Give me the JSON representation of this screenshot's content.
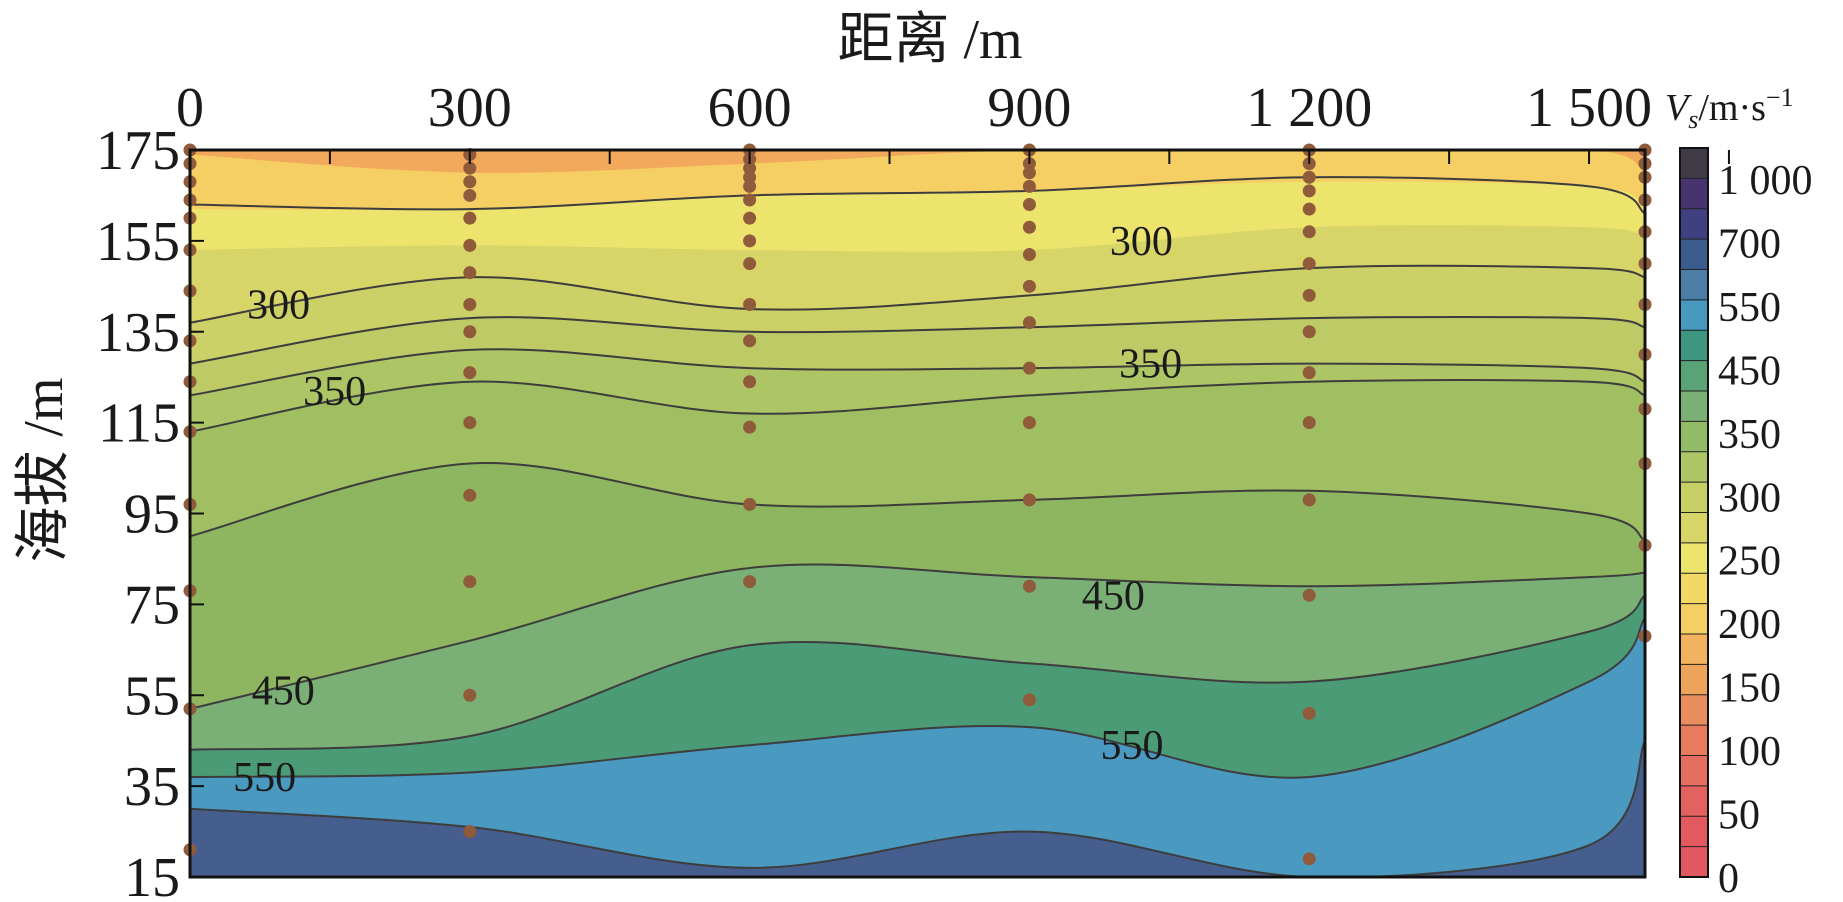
{
  "chart_data": {
    "type": "contour",
    "title": "",
    "xlabel": "距离 /m",
    "ylabel": "海拔 /m",
    "x_axis_position": "top",
    "xlim": [
      0,
      1560
    ],
    "ylim": [
      15,
      175
    ],
    "x_ticks": [
      {
        "value": 0,
        "label": "0"
      },
      {
        "value": 300,
        "label": "300"
      },
      {
        "value": 600,
        "label": "600"
      },
      {
        "value": 900,
        "label": "900"
      },
      {
        "value": 1200,
        "label": "1 200"
      },
      {
        "value": 1500,
        "label": "1 500"
      }
    ],
    "y_ticks": [
      {
        "value": 175,
        "label": "175"
      },
      {
        "value": 155,
        "label": "155"
      },
      {
        "value": 135,
        "label": "135"
      },
      {
        "value": 115,
        "label": "115"
      },
      {
        "value": 95,
        "label": "95"
      },
      {
        "value": 75,
        "label": "75"
      },
      {
        "value": 55,
        "label": "55"
      },
      {
        "value": 35,
        "label": "35"
      },
      {
        "value": 15,
        "label": "15"
      }
    ],
    "profile_x": [
      0,
      300,
      600,
      900,
      1200,
      1500,
      1560
    ],
    "band_tops": [
      {
        "fill": "#f3a95b",
        "top": [
          175,
          175,
          175,
          175,
          175,
          175,
          175
        ]
      },
      {
        "fill": "#f5cf63",
        "top": [
          174,
          170,
          172,
          175,
          175,
          175,
          170
        ]
      },
      {
        "fill": "#ede46d",
        "top": [
          162,
          162,
          165,
          166,
          168,
          167,
          163
        ]
      },
      {
        "fill": "#d8d568",
        "top": [
          153,
          154,
          153,
          153,
          158,
          158,
          156
        ]
      },
      {
        "fill": "#cbd067",
        "top": [
          137,
          147,
          140,
          143,
          149,
          149,
          147
        ]
      },
      {
        "fill": "#bdca66",
        "top": [
          128,
          138,
          135,
          136,
          138,
          138,
          136
        ]
      },
      {
        "fill": "#aec565",
        "top": [
          121,
          131,
          127,
          127,
          128,
          127,
          124
        ]
      },
      {
        "fill": "#a0bf63",
        "top": [
          113,
          124,
          117,
          121,
          124,
          124,
          121
        ]
      },
      {
        "fill": "#8eb560",
        "top": [
          90,
          106,
          97,
          98,
          100,
          95,
          89
        ]
      },
      {
        "fill": "#7aaf75",
        "top": [
          52,
          67,
          83,
          81,
          79,
          81,
          82
        ]
      },
      {
        "fill": "#4c9b77",
        "top": [
          43,
          46,
          66,
          62,
          58,
          69,
          77
        ]
      },
      {
        "fill": "#4999c0",
        "top": [
          37,
          38,
          44,
          48,
          37,
          58,
          72
        ]
      },
      {
        "fill": "#465e8e",
        "top": [
          30,
          26,
          17,
          25,
          15,
          22,
          45
        ]
      }
    ],
    "contour_lines": [
      {
        "y": [
          163,
          162,
          165,
          166,
          169,
          167,
          161
        ]
      },
      {
        "y": [
          137,
          147,
          140,
          143,
          149,
          149,
          147
        ]
      },
      {
        "y": [
          128,
          138,
          135,
          136,
          138,
          138,
          136
        ]
      },
      {
        "y": [
          121,
          131,
          127,
          127,
          128,
          127,
          124
        ]
      },
      {
        "y": [
          113,
          124,
          117,
          121,
          124,
          124,
          121
        ]
      },
      {
        "y": [
          90,
          106,
          97,
          98,
          100,
          95,
          89
        ]
      },
      {
        "y": [
          52,
          67,
          83,
          81,
          79,
          81,
          82
        ]
      },
      {
        "y": [
          43,
          46,
          66,
          62,
          58,
          69,
          77
        ]
      },
      {
        "y": [
          37,
          38,
          44,
          48,
          37,
          58,
          72
        ]
      },
      {
        "y": [
          30,
          26,
          17,
          25,
          15,
          22,
          45
        ]
      }
    ],
    "contour_labels": [
      {
        "text": "300",
        "x": 95,
        "y": 141
      },
      {
        "text": "300",
        "x": 1020,
        "y": 155
      },
      {
        "text": "350",
        "x": 155,
        "y": 122
      },
      {
        "text": "350",
        "x": 1030,
        "y": 128
      },
      {
        "text": "450",
        "x": 990,
        "y": 77
      },
      {
        "text": "450",
        "x": 100,
        "y": 56
      },
      {
        "text": "550",
        "x": 1010,
        "y": 44
      },
      {
        "text": "550",
        "x": 80,
        "y": 37
      }
    ],
    "sample_points": [
      {
        "x": 0,
        "y": [
          175,
          172,
          168,
          164,
          160,
          153,
          144,
          133,
          124,
          113,
          97,
          78,
          52,
          21
        ]
      },
      {
        "x": 300,
        "y": [
          174,
          171,
          168,
          165,
          160,
          154,
          148,
          141,
          135,
          126,
          115,
          99,
          80,
          55,
          25
        ]
      },
      {
        "x": 600,
        "y": [
          175,
          173,
          171,
          169,
          167,
          164,
          160,
          155,
          150,
          141,
          133,
          124,
          114,
          97,
          80
        ]
      },
      {
        "x": 900,
        "y": [
          175,
          172,
          170,
          167,
          163,
          158,
          152,
          145,
          137,
          127,
          115,
          98,
          79,
          54
        ]
      },
      {
        "x": 1200,
        "y": [
          175,
          172,
          169,
          166,
          162,
          157,
          150,
          143,
          135,
          126,
          115,
          98,
          77,
          51,
          19
        ]
      },
      {
        "x": 1560,
        "y": [
          175,
          172,
          169,
          164,
          157,
          150,
          141,
          130,
          118,
          106,
          88,
          68
        ]
      }
    ],
    "colorbar": {
      "title": "V_s/m·s^-1",
      "title_main": "V",
      "title_sub": "s",
      "title_unit": "/m·s",
      "title_sup": "−1",
      "labels": [
        "1 000",
        "700",
        "550",
        "450",
        "350",
        "300",
        "250",
        "200",
        "150",
        "100",
        "50",
        "0"
      ],
      "colors_top_to_bottom": [
        "#3f3a46",
        "#47336f",
        "#3f3f82",
        "#3b5b8c",
        "#4b7da6",
        "#4799c0",
        "#3e9680",
        "#5aa377",
        "#7aaf75",
        "#93ba66",
        "#aec565",
        "#c8cf66",
        "#d8d568",
        "#ede46d",
        "#f3d865",
        "#f5cf63",
        "#f2b25f",
        "#eda359",
        "#e98c5e",
        "#e77b5c",
        "#e56e5e",
        "#e3625f",
        "#e25a60",
        "#e25862"
      ]
    },
    "colors": {
      "point": "#8f5b3a",
      "line": "#3d3d3d",
      "frame": "#111111"
    }
  }
}
